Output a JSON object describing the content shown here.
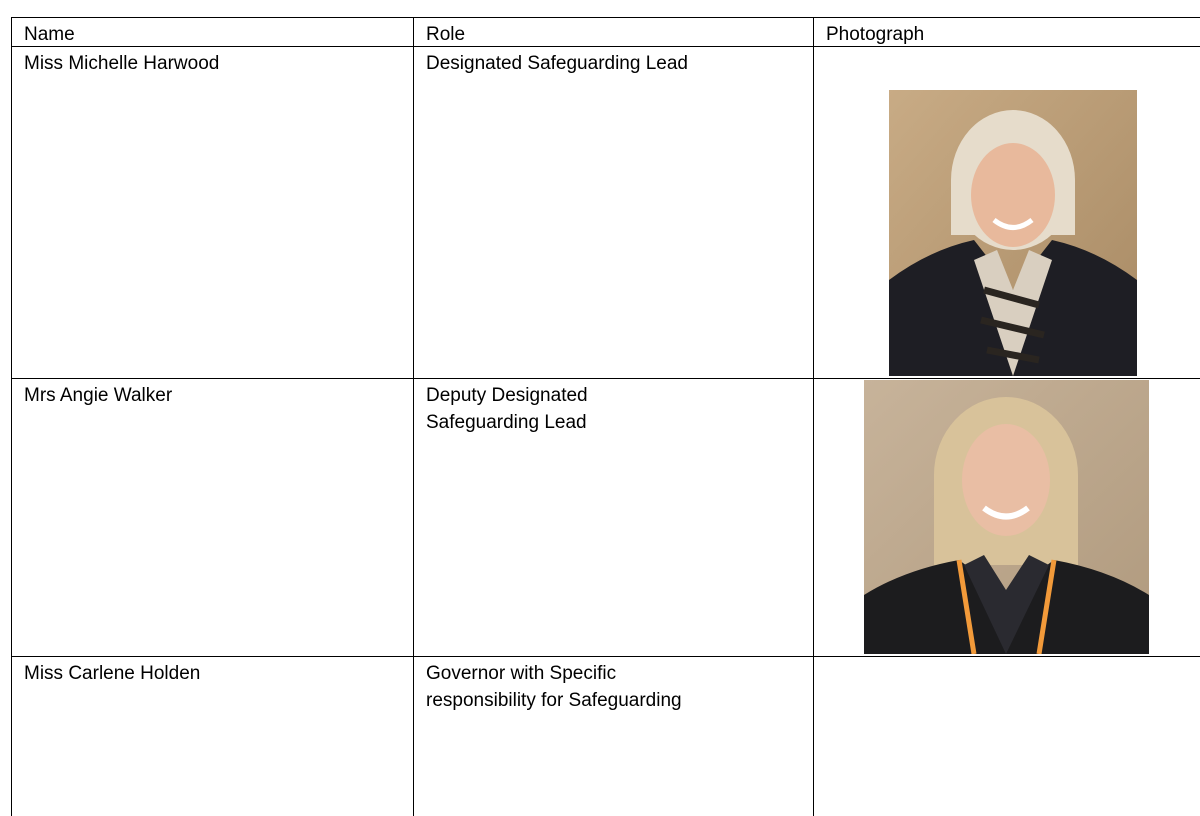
{
  "table": {
    "header": [
      "Name",
      "Role",
      "Photograph"
    ],
    "rows": [
      [
        [
          "Miss Michelle Harwood"
        ],
        [
          "Designated Safeguarding Lead"
        ]
      ],
      [
        [
          "Mrs Angie Walker"
        ],
        [
          "Deputy Designated",
          "Safeguarding Lead"
        ]
      ],
      [
        [
          "Miss Carlene Holden"
        ],
        [
          "Governor with Specific",
          "responsibility for Safeguarding"
        ]
      ]
    ]
  }
}
